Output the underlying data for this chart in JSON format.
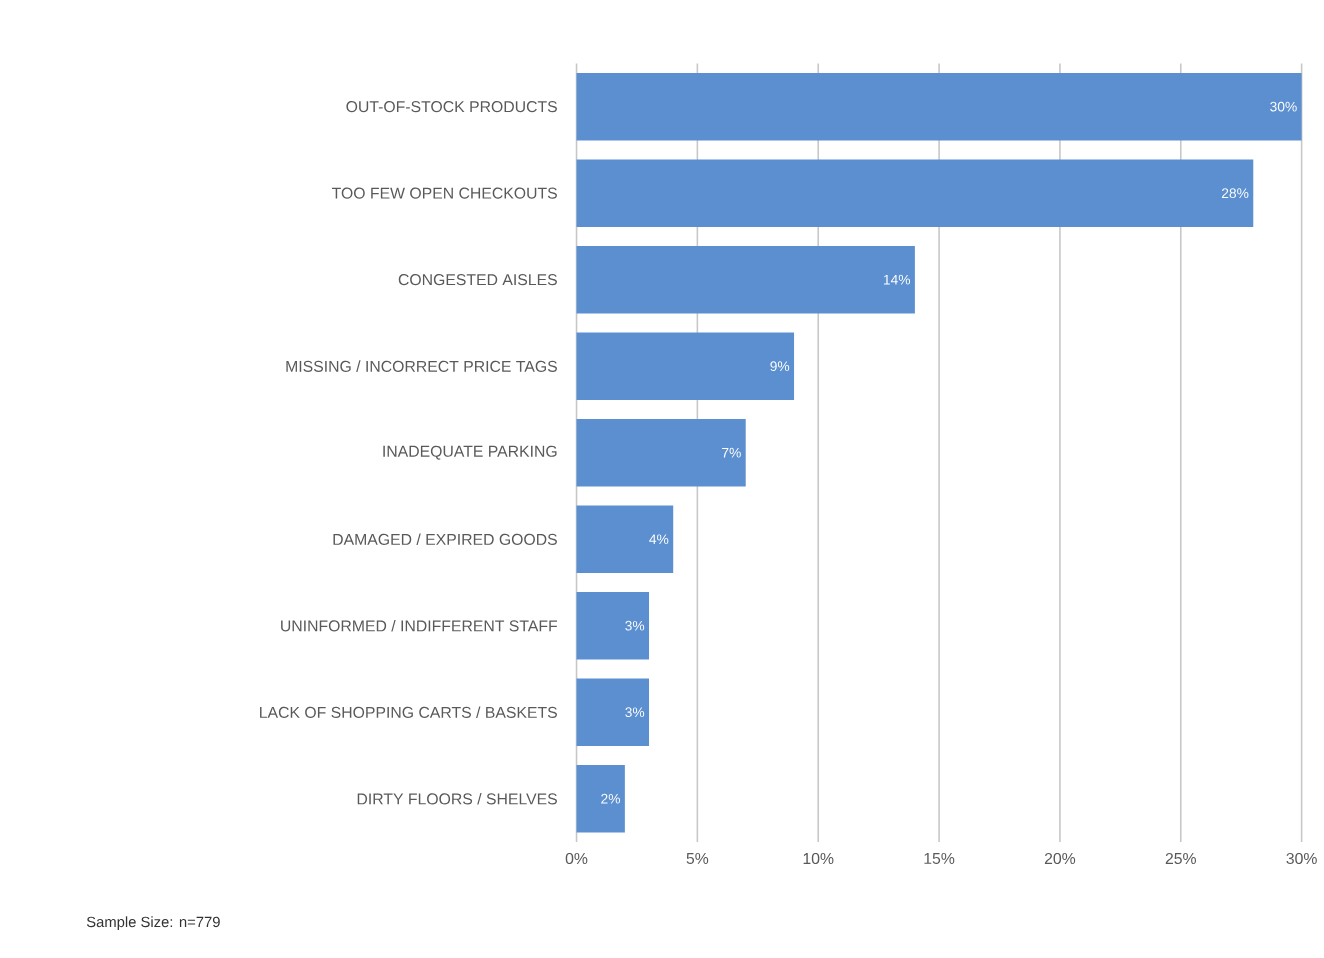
{
  "chart_data": {
    "type": "bar",
    "orientation": "horizontal",
    "categories": [
      "OUT-OF-STOCK PRODUCTS",
      "TOO FEW OPEN CHECKOUTS",
      "CONGESTED AISLES",
      "MISSING / INCORRECT PRICE TAGS",
      "INADEQUATE PARKING",
      "DAMAGED / EXPIRED GOODS",
      "UNINFORMED / INDIFFERENT STAFF",
      "LACK OF SHOPPING CARTS / BASKETS",
      "DIRTY FLOORS / SHELVES"
    ],
    "values": [
      30,
      28,
      14,
      9,
      7,
      4,
      3,
      3,
      2
    ],
    "value_labels": [
      "30%",
      "28%",
      "14%",
      "9%",
      "7%",
      "4%",
      "3%",
      "3%",
      "2%"
    ],
    "color": "#5b8fd0",
    "xlim": [
      0,
      30
    ],
    "xticks": [
      {
        "value": 0,
        "label": "0%"
      },
      {
        "value": 5,
        "label": "5%"
      },
      {
        "value": 10,
        "label": "10%"
      },
      {
        "value": 15,
        "label": "15%"
      },
      {
        "value": 20,
        "label": "20%"
      },
      {
        "value": 25,
        "label": "25%"
      },
      {
        "value": 30,
        "label": "30%"
      }
    ],
    "grid": "x",
    "annotations": [
      "Sample Size: n=779"
    ]
  }
}
